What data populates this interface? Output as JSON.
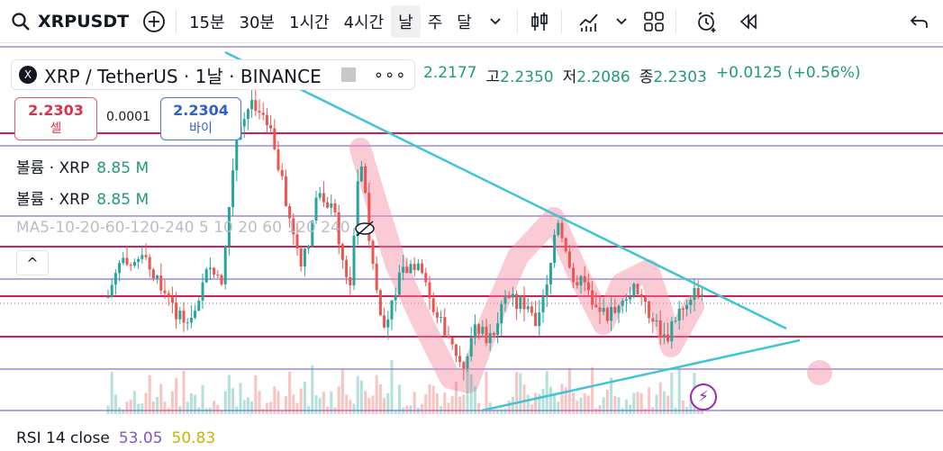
{
  "toolbar": {
    "symbol": "XRPUSDT",
    "intervals": [
      "15분",
      "30분",
      "1시간",
      "4시간",
      "날",
      "주",
      "달"
    ],
    "active_interval": "날",
    "icons": [
      "search-icon",
      "add-symbol-icon",
      "chevron-down-icon",
      "candle-type-icon",
      "indicators-icon",
      "chevron-down-icon",
      "layout-icon",
      "alert-icon",
      "replay-icon",
      "undo-icon"
    ]
  },
  "legend": {
    "title": "XRP / TetherUS · 1날 · BINANCE",
    "logo_letter": "X",
    "dots": "∘∘∘",
    "ohlc": [
      {
        "label": "",
        "value": "2.2177"
      },
      {
        "label": "고",
        "value": "2.2350"
      },
      {
        "label": "저",
        "value": "2.2086"
      },
      {
        "label": "종",
        "value": "2.2303"
      },
      {
        "label": "",
        "value": "+0.0125 (+0.56%)"
      }
    ]
  },
  "trade": {
    "sell_price": "2.2303",
    "sell_label": "셀",
    "spread": "0.0001",
    "buy_price": "2.2304",
    "buy_label": "바이"
  },
  "indicators": {
    "volume1_label": "볼륨 · XRP",
    "volume1_value": "8.85 M",
    "volume2_label": "볼륨 · XRP",
    "volume2_value": "8.85 M",
    "ma_label": "MA5-10-20-60-120-240 5 10 20 60 120 240",
    "collapse_glyph": "^",
    "rsi_label": "RSI 14 close",
    "rsi_value1": "53.05",
    "rsi_value2": "50.83",
    "bolt_glyph": "⚡"
  },
  "colors": {
    "up": "#26a69a",
    "down": "#ef5350",
    "resistance": "#d81b55",
    "level": "#b5a8e0",
    "trendline": "#3fc4d4",
    "path_highlight": "#f48ba0"
  }
}
